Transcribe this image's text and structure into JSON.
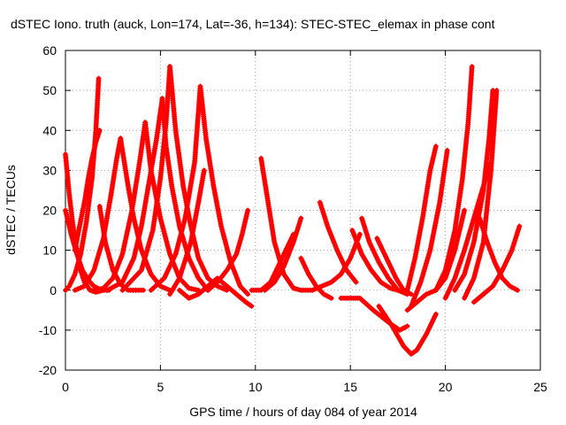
{
  "chart_data": {
    "type": "scatter",
    "title": "dSTEC Iono. truth (auck, Lon=174, Lat=-36, h=134): STEC-STEC_elemax in phase cont",
    "xlabel": "GPS time / hours of day 084 of year 2014",
    "ylabel": "dSTEC  / TECUs",
    "xlim": [
      0,
      25
    ],
    "ylim": [
      -20,
      60
    ],
    "xticks": [
      0,
      5,
      10,
      15,
      20,
      25
    ],
    "yticks": [
      -20,
      -10,
      0,
      10,
      20,
      30,
      40,
      50,
      60
    ],
    "grid": true,
    "marker": "+",
    "colors": {
      "series": "#ff0000",
      "grid": "#a0a0a0",
      "frame": "#000000"
    },
    "series": [
      {
        "name": "",
        "x": [
          0.0,
          0.2,
          0.4,
          0.6,
          0.8,
          1.0,
          1.3,
          1.6,
          2.0
        ],
        "y": [
          34,
          24,
          16,
          10,
          5,
          2,
          0,
          -0.5,
          0
        ]
      },
      {
        "name": "",
        "x": [
          0.0,
          0.3,
          0.6,
          0.9,
          1.2,
          1.5,
          1.9,
          2.3
        ],
        "y": [
          20,
          14,
          9,
          5,
          2.5,
          1,
          0,
          0
        ]
      },
      {
        "name": "",
        "x": [
          0.0,
          0.2,
          0.5,
          0.8,
          1.1,
          1.4,
          1.6,
          1.75
        ],
        "y": [
          0,
          1,
          4,
          9,
          17,
          28,
          40,
          53
        ]
      },
      {
        "name": "",
        "x": [
          0.5,
          0.7,
          1.0,
          1.2,
          1.4,
          1.6,
          1.8
        ],
        "y": [
          10,
          15,
          22,
          28,
          33,
          37,
          40
        ]
      },
      {
        "name": "",
        "x": [
          1.8,
          2.1,
          2.5,
          2.9,
          3.3,
          3.7,
          4.1
        ],
        "y": [
          21,
          12,
          5,
          1.5,
          0,
          0,
          0
        ]
      },
      {
        "name": "",
        "x": [
          0.5,
          1.0,
          1.5,
          2.0,
          2.4,
          2.7,
          2.9
        ],
        "y": [
          0,
          1,
          5,
          13,
          24,
          33,
          38
        ]
      },
      {
        "name": "",
        "x": [
          2.9,
          3.1,
          3.3,
          3.6,
          4.0,
          4.5,
          5.0,
          5.5
        ],
        "y": [
          38,
          32,
          26,
          18,
          10,
          4,
          1,
          0
        ]
      },
      {
        "name": "",
        "x": [
          1.5,
          2.0,
          2.5,
          3.0,
          3.5,
          3.9,
          4.2
        ],
        "y": [
          0,
          0.5,
          3,
          9,
          20,
          32,
          42
        ]
      },
      {
        "name": "",
        "x": [
          4.2,
          4.5,
          5.0,
          5.5,
          6.0,
          6.5,
          7.0
        ],
        "y": [
          42,
          30,
          18,
          9,
          3,
          0.5,
          0
        ]
      },
      {
        "name": "",
        "x": [
          2.2,
          3.0,
          3.6,
          4.0,
          4.4,
          4.8,
          5.1
        ],
        "y": [
          0,
          2,
          8,
          16,
          27,
          38,
          48
        ]
      },
      {
        "name": "",
        "x": [
          5.1,
          5.3,
          5.6,
          6.0,
          6.5,
          7.0,
          7.5
        ],
        "y": [
          48,
          36,
          26,
          16,
          8,
          3,
          0
        ]
      },
      {
        "name": "",
        "x": [
          3.0,
          4.0,
          4.6,
          5.0,
          5.3,
          5.5
        ],
        "y": [
          0,
          5,
          15,
          28,
          42,
          56
        ]
      },
      {
        "name": "",
        "x": [
          5.5,
          5.8,
          6.2,
          6.6,
          7.0,
          7.5,
          8.0,
          8.5
        ],
        "y": [
          56,
          40,
          26,
          16,
          8,
          3,
          1,
          0
        ]
      },
      {
        "name": "",
        "x": [
          4.5,
          5.2,
          5.8,
          6.3,
          6.8,
          7.1
        ],
        "y": [
          0,
          3,
          9,
          18,
          32,
          51
        ]
      },
      {
        "name": "",
        "x": [
          7.1,
          7.4,
          7.8,
          8.2,
          8.7,
          9.2,
          9.6
        ],
        "y": [
          51,
          38,
          26,
          16,
          7,
          1,
          -1
        ]
      },
      {
        "name": "",
        "x": [
          5.5,
          6.0,
          6.6,
          7.0,
          7.3
        ],
        "y": [
          -1,
          3,
          12,
          22,
          30
        ]
      },
      {
        "name": "",
        "x": [
          6.0,
          6.5,
          7.0,
          7.5,
          8.0,
          8.5,
          9.0,
          9.5,
          9.8
        ],
        "y": [
          0,
          -2,
          -1,
          1,
          3,
          1,
          -1,
          -3,
          -4
        ]
      },
      {
        "name": "",
        "x": [
          7.5,
          8.0,
          8.5,
          9.0,
          9.3,
          9.6
        ],
        "y": [
          0,
          2,
          5,
          9,
          14,
          20
        ]
      },
      {
        "name": "",
        "x": [
          10.3,
          10.6,
          11.0,
          11.5,
          12.0,
          12.4
        ],
        "y": [
          33,
          24,
          12,
          4,
          0.5,
          0
        ]
      },
      {
        "name": "",
        "x": [
          9.8,
          10.3,
          10.8,
          11.2,
          11.6,
          12.0
        ],
        "y": [
          0,
          0,
          2,
          6,
          10,
          14
        ]
      },
      {
        "name": "",
        "x": [
          10.5,
          11.0,
          11.5,
          12.0,
          12.4
        ],
        "y": [
          0,
          2,
          6,
          12,
          18
        ]
      },
      {
        "name": "",
        "x": [
          12.4,
          12.8,
          13.2,
          13.6,
          14.0
        ],
        "y": [
          8,
          4,
          1,
          -1,
          -2
        ]
      },
      {
        "name": "",
        "x": [
          13.4,
          13.8,
          14.3,
          14.8,
          15.3
        ],
        "y": [
          22,
          16,
          10,
          5,
          2
        ]
      },
      {
        "name": "",
        "x": [
          12.5,
          13.0,
          13.5,
          14.0,
          14.5,
          15.0,
          15.5
        ],
        "y": [
          0,
          0,
          1,
          2,
          4,
          8,
          14
        ]
      },
      {
        "name": "",
        "x": [
          15.1,
          15.6,
          16.1,
          16.6,
          17.1,
          17.5
        ],
        "y": [
          15,
          9,
          5,
          2,
          0.5,
          0
        ]
      },
      {
        "name": "",
        "x": [
          15.6,
          16.0,
          16.5,
          17.0,
          17.5,
          18.0
        ],
        "y": [
          18,
          12,
          7,
          3,
          0,
          -1
        ]
      },
      {
        "name": "",
        "x": [
          16.4,
          16.9,
          17.4,
          17.8,
          18.2
        ],
        "y": [
          13,
          8,
          3,
          0,
          -1
        ]
      },
      {
        "name": "",
        "x": [
          14.5,
          15.5,
          16.2,
          17.0,
          17.6,
          18.0
        ],
        "y": [
          -2,
          -2,
          -5,
          -8,
          -10,
          -9
        ]
      },
      {
        "name": "",
        "x": [
          16.5,
          17.2,
          17.8,
          18.2,
          18.5,
          19.0,
          19.5
        ],
        "y": [
          -4,
          -9,
          -14,
          -16,
          -15,
          -11,
          -6
        ]
      },
      {
        "name": "",
        "x": [
          18.0,
          18.4,
          18.8,
          19.2,
          19.5
        ],
        "y": [
          0,
          8,
          18,
          30,
          36
        ]
      },
      {
        "name": "",
        "x": [
          18.2,
          18.7,
          19.2,
          19.7,
          20.1
        ],
        "y": [
          -4,
          2,
          10,
          22,
          35
        ]
      },
      {
        "name": "",
        "x": [
          18.0,
          18.5,
          19.0,
          19.5,
          20.0,
          20.5,
          21.0
        ],
        "y": [
          -5,
          -3,
          -1,
          0,
          3,
          10,
          20
        ]
      },
      {
        "name": "",
        "x": [
          19.5,
          20.0,
          20.5,
          20.9,
          21.2,
          21.4
        ],
        "y": [
          0,
          5,
          15,
          28,
          42,
          56
        ]
      },
      {
        "name": "",
        "x": [
          20.5,
          21.0,
          21.5,
          22.0,
          22.3,
          22.5
        ],
        "y": [
          0,
          4,
          12,
          25,
          38,
          50
        ]
      },
      {
        "name": "",
        "x": [
          21.0,
          21.5,
          22.0,
          22.4,
          22.7
        ],
        "y": [
          -2,
          3,
          12,
          30,
          50
        ]
      },
      {
        "name": "",
        "x": [
          20.0,
          20.5,
          21.0,
          21.5,
          22.0,
          22.4
        ],
        "y": [
          -2,
          3,
          10,
          18,
          26,
          32
        ]
      },
      {
        "name": "",
        "x": [
          21.5,
          22.0,
          22.5,
          23.0,
          23.5,
          23.9
        ],
        "y": [
          -3,
          -1,
          1,
          5,
          10,
          16
        ]
      },
      {
        "name": "",
        "x": [
          21.8,
          22.2,
          22.6,
          23.0,
          23.4,
          23.8
        ],
        "y": [
          18,
          12,
          7,
          3,
          1,
          0
        ]
      }
    ]
  }
}
